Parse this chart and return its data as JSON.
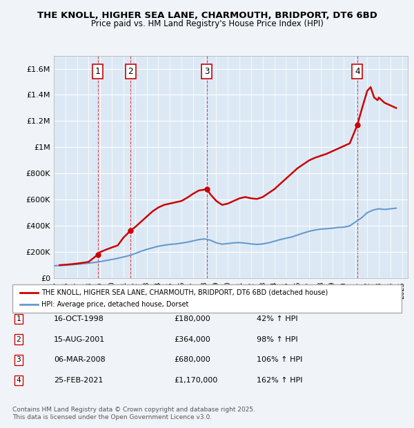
{
  "title_line1": "THE KNOLL, HIGHER SEA LANE, CHARMOUTH, BRIDPORT, DT6 6BD",
  "title_line2": "Price paid vs. HM Land Registry's House Price Index (HPI)",
  "bg_color": "#dce9f5",
  "plot_bg_color": "#dce9f5",
  "red_line_color": "#cc0000",
  "blue_line_color": "#6699cc",
  "transactions": [
    {
      "num": 1,
      "date": "16-OCT-1998",
      "year": 1998.79,
      "price": 180000,
      "hpi_pct": "42% ↑ HPI"
    },
    {
      "num": 2,
      "date": "15-AUG-2001",
      "year": 2001.62,
      "price": 364000,
      "hpi_pct": "98% ↑ HPI"
    },
    {
      "num": 3,
      "date": "06-MAR-2008",
      "year": 2008.18,
      "price": 680000,
      "hpi_pct": "106% ↑ HPI"
    },
    {
      "num": 4,
      "date": "25-FEB-2021",
      "year": 2021.15,
      "price": 1170000,
      "hpi_pct": "162% ↑ HPI"
    }
  ],
  "xlim": [
    1995,
    2025.5
  ],
  "ylim": [
    0,
    1700000
  ],
  "yticks": [
    0,
    200000,
    400000,
    600000,
    800000,
    1000000,
    1200000,
    1400000,
    1600000
  ],
  "ytick_labels": [
    "£0",
    "£200K",
    "£400K",
    "£600K",
    "£800K",
    "£1M",
    "£1.2M",
    "£1.4M",
    "£1.6M"
  ],
  "legend_label_red": "THE KNOLL, HIGHER SEA LANE, CHARMOUTH, BRIDPORT, DT6 6BD (detached house)",
  "legend_label_blue": "HPI: Average price, detached house, Dorset",
  "footer": "Contains HM Land Registry data © Crown copyright and database right 2025.\nThis data is licensed under the Open Government Licence v3.0.",
  "hpi_data_x": [
    1995,
    1995.5,
    1996,
    1996.5,
    1997,
    1997.5,
    1998,
    1998.5,
    1999,
    1999.5,
    2000,
    2000.5,
    2001,
    2001.5,
    2002,
    2002.5,
    2003,
    2003.5,
    2004,
    2004.5,
    2005,
    2005.5,
    2006,
    2006.5,
    2007,
    2007.5,
    2008,
    2008.5,
    2009,
    2009.5,
    2010,
    2010.5,
    2011,
    2011.5,
    2012,
    2012.5,
    2013,
    2013.5,
    2014,
    2014.5,
    2015,
    2015.5,
    2016,
    2016.5,
    2017,
    2017.5,
    2018,
    2018.5,
    2019,
    2019.5,
    2020,
    2020.5,
    2021,
    2021.5,
    2022,
    2022.5,
    2023,
    2023.5,
    2024,
    2024.5
  ],
  "hpi_data_y": [
    95000,
    97000,
    99000,
    102000,
    106000,
    110000,
    115000,
    120000,
    127000,
    135000,
    143000,
    152000,
    162000,
    173000,
    188000,
    205000,
    220000,
    232000,
    244000,
    252000,
    258000,
    262000,
    268000,
    275000,
    285000,
    295000,
    300000,
    290000,
    270000,
    260000,
    265000,
    270000,
    272000,
    268000,
    262000,
    258000,
    262000,
    270000,
    282000,
    295000,
    305000,
    315000,
    330000,
    345000,
    358000,
    368000,
    375000,
    378000,
    382000,
    388000,
    390000,
    400000,
    430000,
    460000,
    500000,
    520000,
    530000,
    525000,
    530000,
    535000
  ],
  "property_data_x": [
    1995.5,
    1996,
    1996.5,
    1997,
    1997.5,
    1998,
    1998.79,
    1999,
    1999.5,
    2000,
    2000.5,
    2001,
    2001.62,
    2002,
    2002.5,
    2003,
    2003.5,
    2004,
    2004.5,
    2005,
    2005.5,
    2006,
    2006.5,
    2007,
    2007.5,
    2008.18,
    2008.5,
    2009,
    2009.5,
    2010,
    2010.5,
    2011,
    2011.5,
    2012,
    2012.5,
    2013,
    2013.5,
    2014,
    2014.5,
    2015,
    2015.5,
    2016,
    2016.5,
    2017,
    2017.5,
    2018,
    2018.5,
    2019,
    2019.5,
    2020,
    2020.5,
    2021.15,
    2021.5,
    2022,
    2022.3,
    2022.6,
    2022.9,
    2023,
    2023.5,
    2024,
    2024.5
  ],
  "property_data_y": [
    100000,
    103000,
    107000,
    112000,
    118000,
    125000,
    180000,
    200000,
    218000,
    235000,
    250000,
    310000,
    364000,
    390000,
    430000,
    470000,
    510000,
    540000,
    560000,
    570000,
    580000,
    590000,
    615000,
    645000,
    670000,
    680000,
    640000,
    590000,
    560000,
    570000,
    590000,
    610000,
    620000,
    610000,
    605000,
    620000,
    650000,
    680000,
    720000,
    760000,
    800000,
    840000,
    870000,
    900000,
    920000,
    935000,
    950000,
    970000,
    990000,
    1010000,
    1030000,
    1170000,
    1280000,
    1430000,
    1460000,
    1380000,
    1360000,
    1380000,
    1340000,
    1320000,
    1300000
  ]
}
